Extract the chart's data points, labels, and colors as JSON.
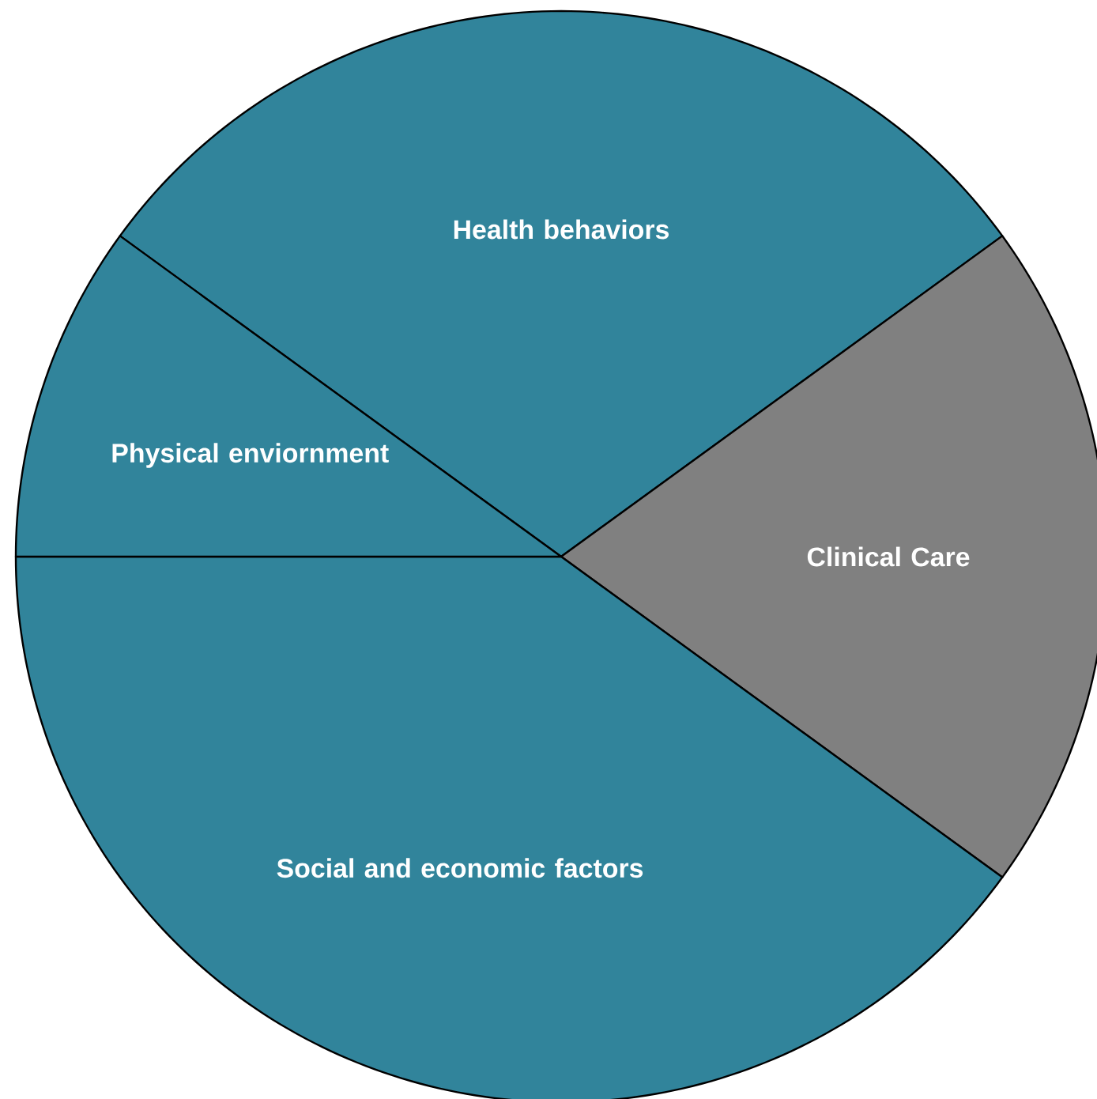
{
  "chart_data": {
    "type": "pie",
    "categories": [
      "Health behaviors",
      "Clinical Care",
      "Social and economic factors",
      "Physical enviornment"
    ],
    "values": [
      30,
      20,
      40,
      10
    ],
    "colors": [
      "#31849b",
      "#808080",
      "#31849b",
      "#31849b"
    ]
  }
}
